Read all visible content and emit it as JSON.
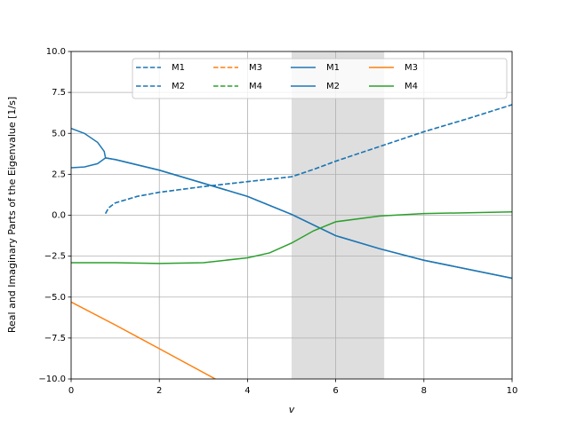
{
  "chart_data": {
    "type": "line",
    "xlabel": "v",
    "ylabel": "Real and Imaginary Parts of the Eigenvalue [1/s]",
    "xlim": [
      0,
      10
    ],
    "ylim": [
      -10,
      10
    ],
    "xticks": [
      0,
      2,
      4,
      6,
      8,
      10
    ],
    "yticks": [
      {
        "value": -10,
        "label": "−10.0"
      },
      {
        "value": -7.5,
        "label": "−7.5"
      },
      {
        "value": -5,
        "label": "−5.0"
      },
      {
        "value": -2.5,
        "label": "−2.5"
      },
      {
        "value": 0,
        "label": "0.0"
      },
      {
        "value": 2.5,
        "label": "2.5"
      },
      {
        "value": 5,
        "label": "5.0"
      },
      {
        "value": 7.5,
        "label": "7.5"
      },
      {
        "value": 10,
        "label": "10.0"
      }
    ],
    "grid": true,
    "shaded_region": [
      5,
      7.1
    ],
    "legend_columns": 5,
    "series": [
      {
        "name": "M1",
        "color": "#1f77b4",
        "linestyle": "dashed",
        "x": [
          0.78,
          0.85,
          1,
          1.5,
          2,
          3,
          4,
          5,
          5.5,
          6,
          7,
          8,
          9,
          10
        ],
        "values": [
          0.1,
          0.45,
          0.75,
          1.15,
          1.4,
          1.75,
          2.05,
          2.35,
          2.8,
          3.3,
          4.2,
          5.1,
          5.9,
          6.75
        ]
      },
      {
        "name": "M2",
        "color": "#1f77b4",
        "linestyle": "dashed",
        "x": [
          0.78,
          0.85,
          1,
          1.5,
          2,
          3,
          4,
          5,
          5.5,
          6,
          7,
          8,
          9,
          10
        ],
        "values": [
          0.1,
          0.45,
          0.75,
          1.15,
          1.4,
          1.75,
          2.05,
          2.35,
          2.8,
          3.3,
          4.2,
          5.1,
          5.9,
          6.75
        ]
      },
      {
        "name": "M3",
        "color": "#ff7f0e",
        "linestyle": "dashed",
        "x": [],
        "values": []
      },
      {
        "name": "M4",
        "color": "#2ca02c",
        "linestyle": "dashed",
        "x": [],
        "values": []
      },
      {
        "name": "M1",
        "color": "#1f77b4",
        "linestyle": "solid",
        "x": [
          0,
          0.3,
          0.6,
          0.75,
          0.78,
          1,
          2,
          3,
          4,
          5,
          6,
          7,
          8,
          9,
          10
        ],
        "values": [
          5.3,
          5.0,
          4.45,
          3.9,
          3.5,
          3.4,
          2.75,
          1.95,
          1.15,
          0.05,
          -1.25,
          -2.05,
          -2.75,
          -3.3,
          -3.85
        ]
      },
      {
        "name": "M2",
        "color": "#1f77b4",
        "linestyle": "solid",
        "x": [
          0,
          0.3,
          0.6,
          0.78,
          1,
          2,
          3,
          4,
          5,
          6,
          7,
          8,
          9,
          10
        ],
        "values": [
          2.9,
          2.95,
          3.15,
          3.5,
          3.4,
          2.75,
          1.95,
          1.15,
          0.05,
          -1.25,
          -2.05,
          -2.75,
          -3.3,
          -3.85
        ]
      },
      {
        "name": "M3",
        "color": "#ff7f0e",
        "linestyle": "solid",
        "x": [
          0,
          1,
          2,
          3.27
        ],
        "values": [
          -5.3,
          -6.7,
          -8.15,
          -10
        ]
      },
      {
        "name": "M4",
        "color": "#2ca02c",
        "linestyle": "solid",
        "x": [
          0,
          1,
          2,
          3,
          4,
          4.5,
          5,
          5.5,
          6,
          7,
          8,
          9,
          10
        ],
        "values": [
          -2.9,
          -2.9,
          -2.95,
          -2.9,
          -2.6,
          -2.3,
          -1.7,
          -0.95,
          -0.4,
          -0.05,
          0.1,
          0.15,
          0.2
        ]
      }
    ]
  }
}
